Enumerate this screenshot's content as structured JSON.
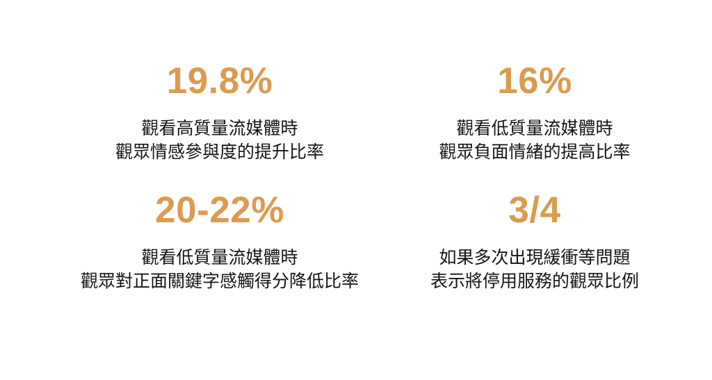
{
  "page": {
    "kind": "statistics-infographic",
    "language": "zh-Hant"
  },
  "colors": {
    "background": "#ffffff",
    "accent": "#DB9B50",
    "text": "#141414"
  },
  "stats": [
    {
      "id": "emotional-engagement-increase",
      "value": "19.8%",
      "line1": "觀看高質量流媒體時",
      "line2": "觀眾情感參與度的提升比率"
    },
    {
      "id": "negative-emotion-increase",
      "value": "16%",
      "line1": "觀看低質量流媒體時",
      "line2": "觀眾負面情緒的提高比率"
    },
    {
      "id": "positive-keyword-sentiment-decrease",
      "value": "20-22%",
      "line1": "觀看低質量流媒體時",
      "line2": "觀眾對正面關鍵字感觸得分降低比率"
    },
    {
      "id": "service-abandonment-ratio",
      "value": "3/4",
      "line1": "如果多次出現緩衝等問題",
      "line2": "表示將停用服務的觀眾比例"
    }
  ]
}
